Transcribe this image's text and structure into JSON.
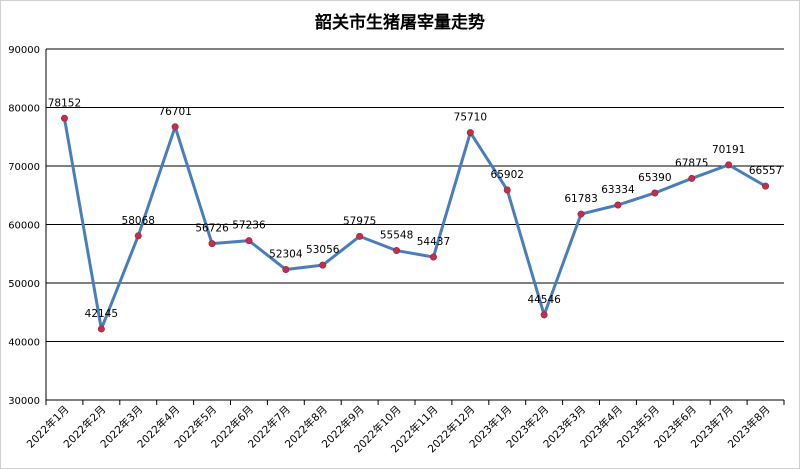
{
  "chart_data": {
    "type": "line",
    "title": "韶关市生猪屠宰量走势",
    "categories": [
      "2022年1月",
      "2022年2月",
      "2022年3月",
      "2022年4月",
      "2022年5月",
      "2022年6月",
      "2022年7月",
      "2022年8月",
      "2022年9月",
      "2022年10月",
      "2022年11月",
      "2022年12月",
      "2023年1月",
      "2023年2月",
      "2023年3月",
      "2023年4月",
      "2023年5月",
      "2023年6月",
      "2023年7月",
      "2023年8月"
    ],
    "values": [
      78152,
      42145,
      58068,
      76701,
      56726,
      57236,
      52304,
      53056,
      57975,
      55548,
      54437,
      75710,
      65902,
      44546,
      61783,
      63334,
      65390,
      67875,
      70191,
      66557
    ],
    "ylim": [
      30000,
      90000
    ],
    "yticks": [
      30000,
      40000,
      50000,
      60000,
      70000,
      80000,
      90000
    ],
    "grid": true,
    "legend": false,
    "colors": {
      "line": "#4a7ebb",
      "marker": "#c0304a",
      "grid": "#000000"
    }
  }
}
